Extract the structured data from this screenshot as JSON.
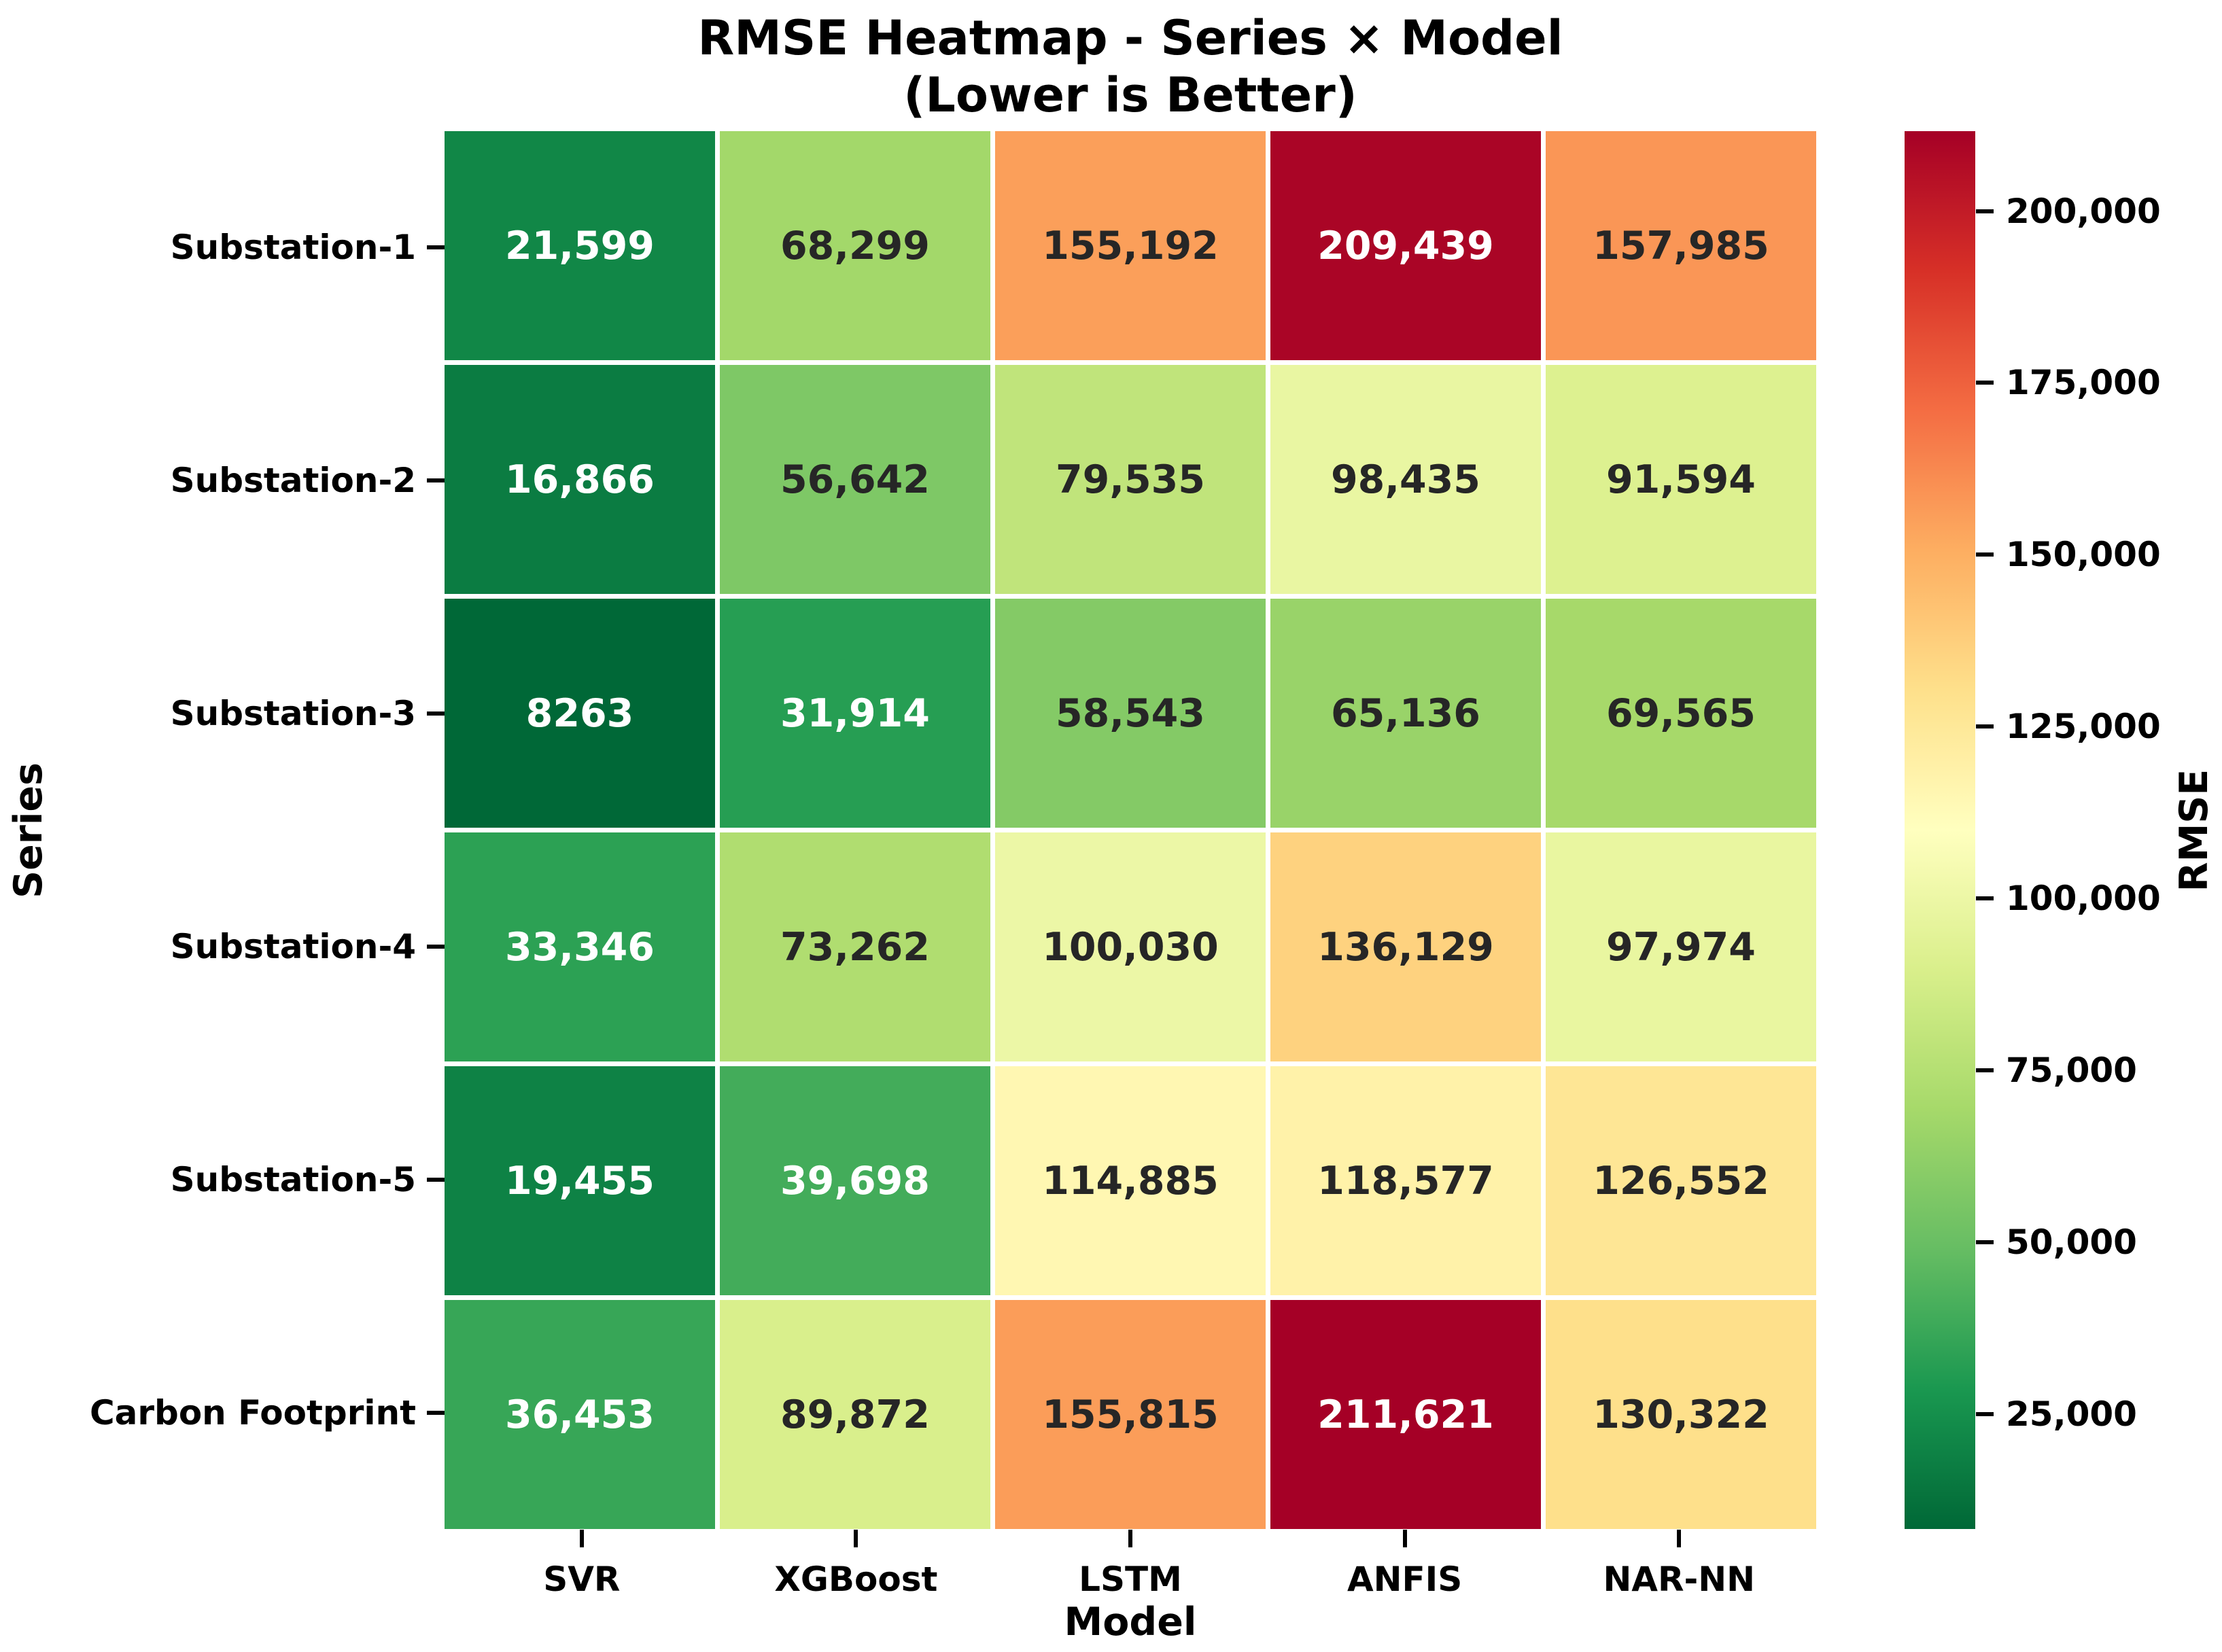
{
  "title": {
    "line1": "RMSE Heatmap - Series × Model",
    "line2": "(Lower is Better)"
  },
  "axes": {
    "x_label": "Model",
    "y_label": "Series"
  },
  "chart_data": {
    "type": "heatmap",
    "rows": [
      "Substation-1",
      "Substation-2",
      "Substation-3",
      "Substation-4",
      "Substation-5",
      "Carbon Footprint"
    ],
    "columns": [
      "SVR",
      "XGBoost",
      "LSTM",
      "ANFIS",
      "NAR-NN"
    ],
    "values": [
      [
        21599,
        68299,
        155192,
        209439,
        157985
      ],
      [
        16866,
        56642,
        79535,
        98435,
        91594
      ],
      [
        8263,
        31914,
        58543,
        65136,
        69565
      ],
      [
        33346,
        73262,
        100030,
        136129,
        97974
      ],
      [
        19455,
        39698,
        114885,
        118577,
        126552
      ],
      [
        36453,
        89872,
        155815,
        211621,
        130322
      ]
    ],
    "cell_labels": [
      [
        "21,599",
        "68,299",
        "155,192",
        "209,439",
        "157,985"
      ],
      [
        "16,866",
        "56,642",
        "79,535",
        "98,435",
        "91,594"
      ],
      [
        "8263",
        "31,914",
        "58,543",
        "65,136",
        "69,565"
      ],
      [
        "33,346",
        "73,262",
        "100,030",
        "136,129",
        "97,974"
      ],
      [
        "19,455",
        "39,698",
        "114,885",
        "118,577",
        "126,552"
      ],
      [
        "36,453",
        "89,872",
        "155,815",
        "211,621",
        "130,322"
      ]
    ],
    "colormap": "RdYlGn_r",
    "vmin": 8263,
    "vmax": 211621,
    "grid": "white-gaps",
    "legend_position": "right",
    "colorbar": {
      "label": "RMSE",
      "tick_values": [
        25000,
        50000,
        75000,
        100000,
        125000,
        150000,
        175000,
        200000
      ],
      "tick_labels": [
        "25,000",
        "50,000",
        "75,000",
        "100,000",
        "125,000",
        "150,000",
        "175,000",
        "200,000"
      ]
    }
  },
  "colors": {
    "background": "#ffffff",
    "annotation_dark": "#262626",
    "annotation_light": "#ffffff",
    "cmap_low": "#006837",
    "cmap_mid": "#ffffbf",
    "cmap_high": "#a50026"
  }
}
